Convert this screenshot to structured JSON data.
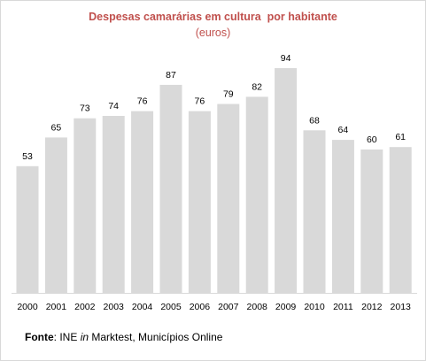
{
  "chart_data": {
    "type": "bar",
    "title": "Despesas camarárias em cultura  por habitante",
    "subtitle": "(euros)",
    "categories": [
      "2000",
      "2001",
      "2002",
      "2003",
      "2004",
      "2005",
      "2006",
      "2007",
      "2008",
      "2009",
      "2010",
      "2011",
      "2012",
      "2013"
    ],
    "values": [
      53,
      65,
      73,
      74,
      76,
      87,
      76,
      79,
      82,
      94,
      68,
      64,
      60,
      61
    ],
    "xlabel": "",
    "ylabel": "",
    "ylim": [
      0,
      94
    ],
    "grid": false,
    "legend": "none",
    "bar_color": "#d9d9d9",
    "title_color": "#c0504d"
  },
  "source": {
    "label": "Fonte",
    "separator": ": INE ",
    "italic": "in",
    "rest": " Marktest, Municípios Online"
  }
}
